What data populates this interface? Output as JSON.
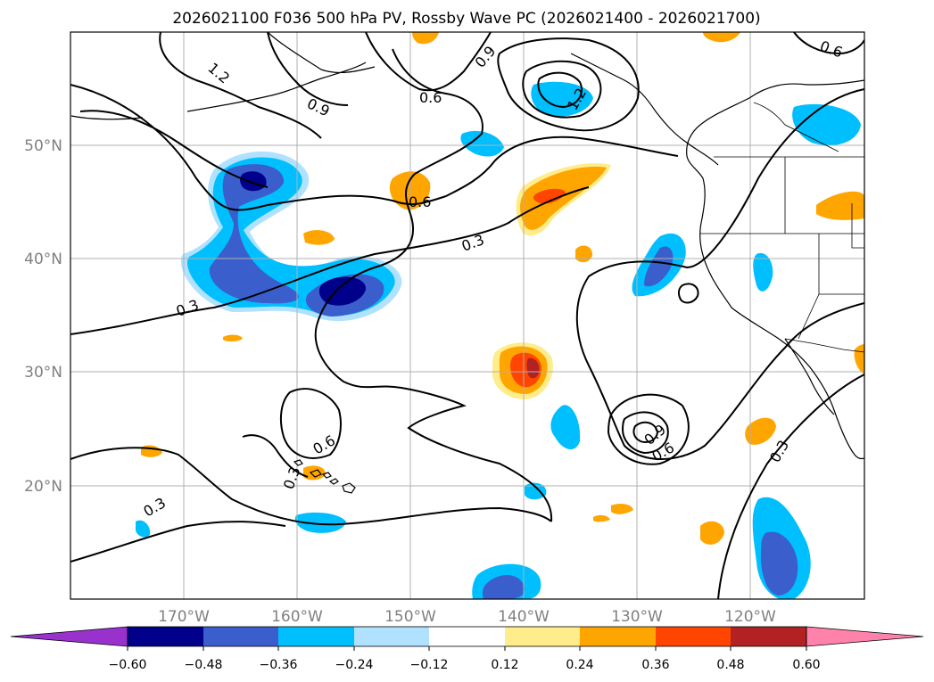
{
  "title": "2026021100 F036 500 hPa PV, Rossby Wave PC (2026021400 - 2026021700)",
  "axes": {
    "lon_ticks": [
      "170°W",
      "160°W",
      "150°W",
      "140°W",
      "130°W",
      "120°W"
    ],
    "lat_ticks": [
      "50°N",
      "40°N",
      "30°N",
      "20°N"
    ]
  },
  "colorbar": {
    "labels": [
      "−0.60",
      "−0.48",
      "−0.36",
      "−0.24",
      "−0.12",
      "0.12",
      "0.24",
      "0.36",
      "0.48",
      "0.60"
    ],
    "colors": {
      "under": "#9932cc",
      "bins": [
        "#00008b",
        "#3a5fcd",
        "#00bfff",
        "#b0e2ff",
        "#ffffff",
        "#ffec8b",
        "#ffa500",
        "#ff4500",
        "#b22222"
      ],
      "over": "#ff82ab"
    }
  },
  "contour_labels": {
    "l1": "1.2",
    "l2": "0.9",
    "l3": "0.6",
    "l4": "0.9",
    "l5": "1.2",
    "l6": "0.6",
    "l7": "0.6",
    "l8": "0.3",
    "l9": "0.3",
    "l10": "0.6",
    "l11": "0.3",
    "l12": "0.3",
    "l13": "0.9",
    "l14": "0.6",
    "l15": "0.3"
  }
}
